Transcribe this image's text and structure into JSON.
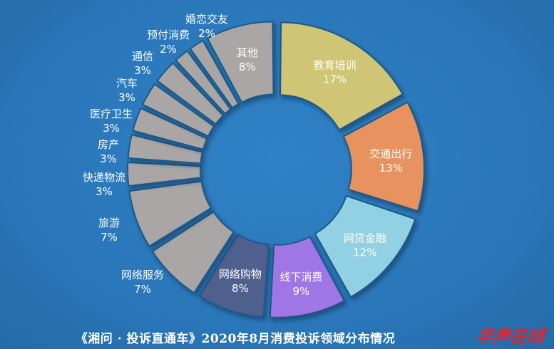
{
  "chart_data": {
    "type": "pie",
    "variant": "donut",
    "title": "《湘问 · 投诉直通车》2020年8月消费投诉领域分布情况",
    "unit": "%",
    "slices": [
      {
        "name": "教育培训",
        "value": 17,
        "label": "17%",
        "color": "#d0c474"
      },
      {
        "name": "交通出行",
        "value": 13,
        "label": "13%",
        "color": "#e8935f"
      },
      {
        "name": "网贷金融",
        "value": 12,
        "label": "12%",
        "color": "#92d0e3"
      },
      {
        "name": "线下消费",
        "value": 9,
        "label": "9%",
        "color": "#a076e6"
      },
      {
        "name": "网络购物",
        "value": 8,
        "label": "8%",
        "color": "#4f5e8e"
      },
      {
        "name": "网络服务",
        "value": 7,
        "label": "7%",
        "color": "#aaa6a6"
      },
      {
        "name": "旅游",
        "value": 7,
        "label": "7%",
        "color": "#aaa6a6"
      },
      {
        "name": "快递物流",
        "value": 3,
        "label": "3%",
        "color": "#aaa6a6"
      },
      {
        "name": "房产",
        "value": 3,
        "label": "3%",
        "color": "#aaa6a6"
      },
      {
        "name": "医疗卫生",
        "value": 3,
        "label": "3%",
        "color": "#aaa6a6"
      },
      {
        "name": "汽车",
        "value": 3,
        "label": "3%",
        "color": "#aaa6a6"
      },
      {
        "name": "通信",
        "value": 3,
        "label": "3%",
        "color": "#aaa6a6"
      },
      {
        "name": "预付消费",
        "value": 2,
        "label": "2%",
        "color": "#aaa6a6"
      },
      {
        "name": "婚恋交友",
        "value": 2,
        "label": "2%",
        "color": "#aaa6a6"
      },
      {
        "name": "其他",
        "value": 8,
        "label": "8%",
        "color": "#aaa6a6"
      }
    ],
    "label_color": "#ffffff",
    "background_color": "#2a77ba",
    "separator_color": "#1f5a86"
  },
  "brand": {
    "logo_text": "华声在线",
    "logo_color": "#e0242b"
  }
}
